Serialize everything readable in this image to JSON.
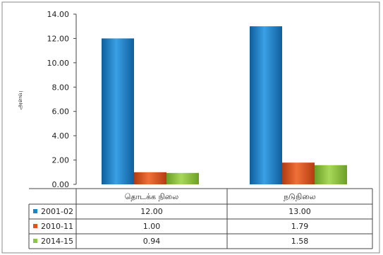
{
  "chart_data": {
    "type": "bar",
    "ylabel": "அளவு",
    "ylim": [
      0,
      14
    ],
    "yticks": [
      "0.00",
      "2.00",
      "4.00",
      "6.00",
      "8.00",
      "10.00",
      "12.00",
      "14.00"
    ],
    "grid": false,
    "legend": "bottom-left data table",
    "categories": [
      "தொடக்க நிலை",
      "நடுநிலை"
    ],
    "series": [
      {
        "name": "2001-02",
        "color": "#1f83c8",
        "values": [
          12.0,
          13.0
        ],
        "labels": [
          "12.00",
          "13.00"
        ]
      },
      {
        "name": "2010-11",
        "color": "#e0521c",
        "values": [
          1.0,
          1.79
        ],
        "labels": [
          "1.00",
          "1.79"
        ]
      },
      {
        "name": "2014-15",
        "color": "#8dc63f",
        "values": [
          0.94,
          1.58
        ],
        "labels": [
          "0.94",
          "1.58"
        ]
      }
    ]
  }
}
